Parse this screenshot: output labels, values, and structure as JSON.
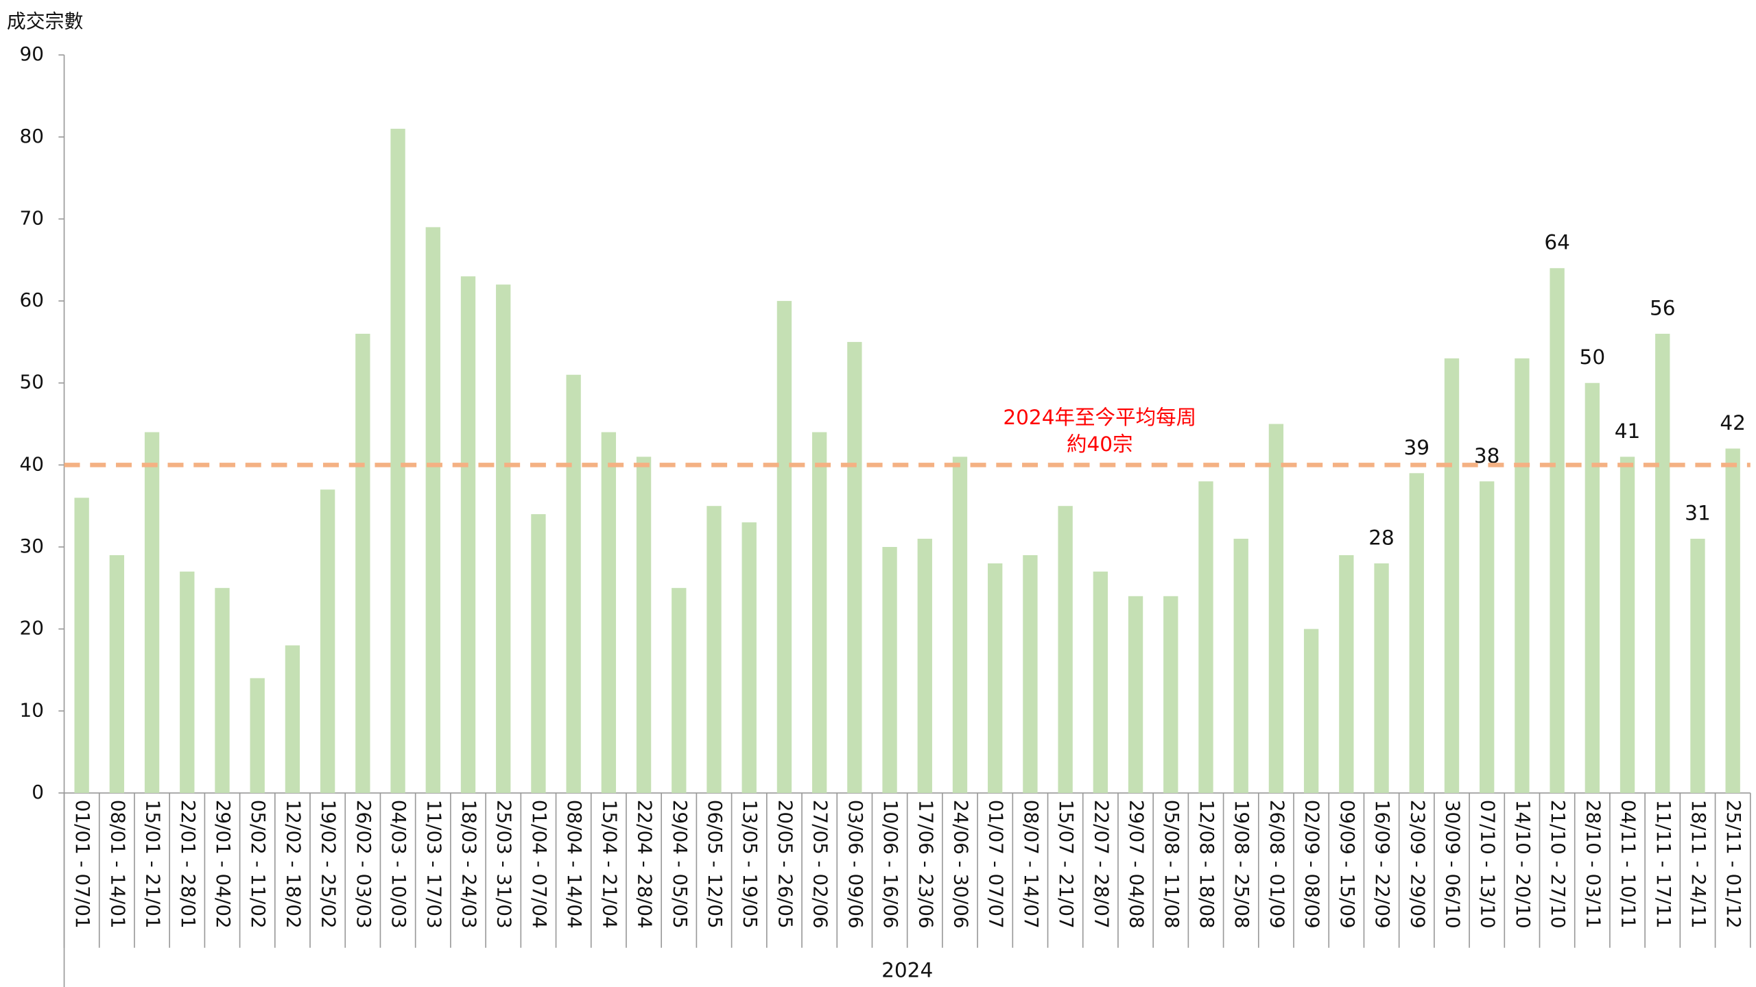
{
  "chart_data": {
    "type": "bar",
    "ylabel": "成交宗數",
    "xlabel": "2024",
    "categories": [
      "01/01 - 07/01",
      "08/01 - 14/01",
      "15/01 - 21/01",
      "22/01 - 28/01",
      "29/01 - 04/02",
      "05/02 - 11/02",
      "12/02 - 18/02",
      "19/02 - 25/02",
      "26/02 - 03/03",
      "04/03 - 10/03",
      "11/03 - 17/03",
      "18/03 - 24/03",
      "25/03 - 31/03",
      "01/04 - 07/04",
      "08/04 - 14/04",
      "15/04 - 21/04",
      "22/04 - 28/04",
      "29/04 - 05/05",
      "06/05 - 12/05",
      "13/05 - 19/05",
      "20/05 - 26/05",
      "27/05 - 02/06",
      "03/06 - 09/06",
      "10/06 - 16/06",
      "17/06 - 23/06",
      "24/06 - 30/06",
      "01/07 - 07/07",
      "08/07 - 14/07",
      "15/07 - 21/07",
      "22/07 - 28/07",
      "29/07 - 04/08",
      "05/08 - 11/08",
      "12/08 - 18/08",
      "19/08 - 25/08",
      "26/08 - 01/09",
      "02/09 - 08/09",
      "09/09 - 15/09",
      "16/09 - 22/09",
      "23/09 - 29/09",
      "30/09 - 06/10",
      "07/10 - 13/10",
      "14/10 - 20/10",
      "21/10 - 27/10",
      "28/10 - 03/11",
      "04/11 - 10/11",
      "11/11 - 17/11",
      "18/11 - 24/11",
      "25/11 - 01/12"
    ],
    "values": [
      36,
      29,
      44,
      27,
      25,
      14,
      18,
      37,
      56,
      81,
      69,
      63,
      62,
      34,
      51,
      44,
      41,
      25,
      35,
      33,
      60,
      44,
      55,
      30,
      31,
      41,
      28,
      29,
      35,
      27,
      24,
      24,
      38,
      31,
      45,
      20,
      29,
      28,
      39,
      53,
      38,
      53,
      64,
      50,
      41,
      56,
      31,
      42
    ],
    "value_labels": [
      null,
      null,
      null,
      null,
      null,
      null,
      null,
      null,
      null,
      null,
      null,
      null,
      null,
      null,
      null,
      null,
      null,
      null,
      null,
      null,
      null,
      null,
      null,
      null,
      null,
      null,
      null,
      null,
      null,
      null,
      null,
      null,
      null,
      null,
      null,
      null,
      null,
      "28",
      "39",
      null,
      "38",
      null,
      "64",
      "50",
      "41",
      "56",
      "31",
      "42"
    ],
    "color": "#c5e0b4",
    "ylim": [
      0,
      90
    ],
    "yticks": [
      0,
      10,
      20,
      30,
      40,
      50,
      60,
      70,
      80,
      90
    ],
    "reference_line": {
      "value": 40,
      "color": "#f4b183",
      "dashed": true,
      "annotation": [
        "2024年至今平均每周",
        "約40宗"
      ],
      "annotation_color": "#ff0000"
    }
  }
}
